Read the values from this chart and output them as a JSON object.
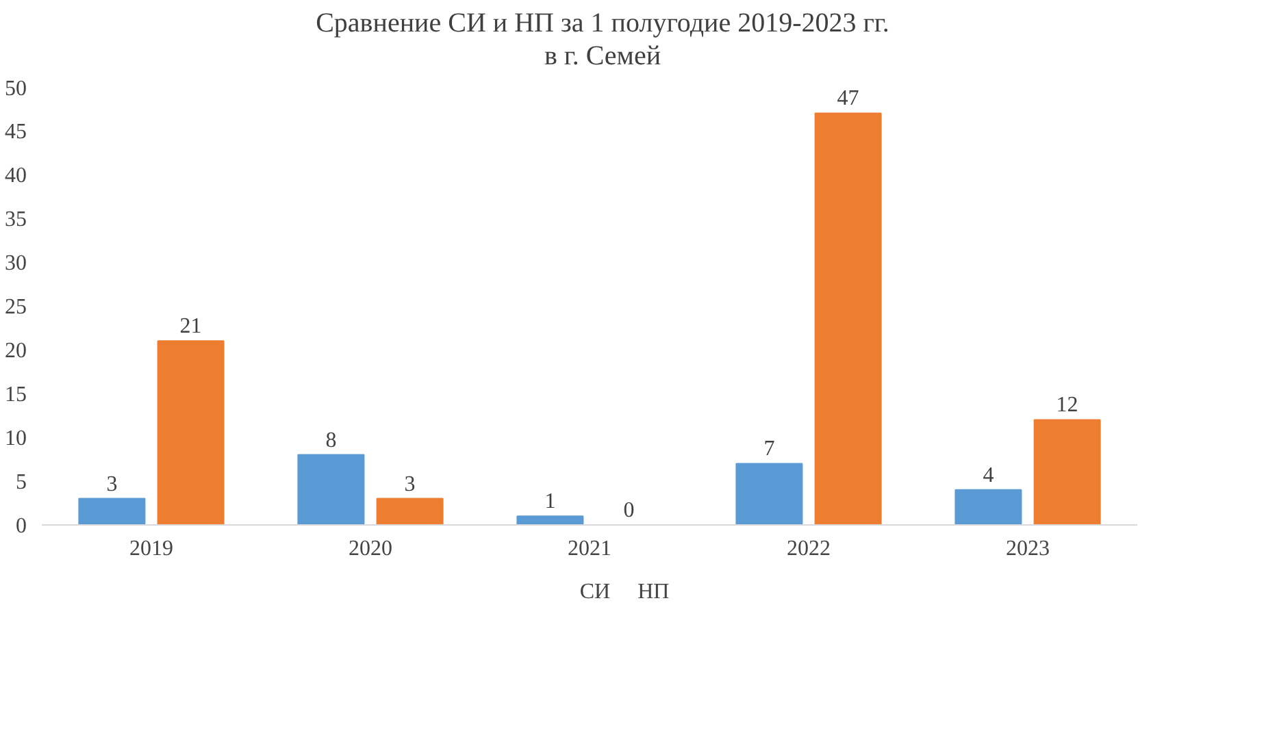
{
  "chart_data": {
    "type": "bar",
    "title": "Сравнение СИ и НП за 1 полугодие 2019-2023 гг.\nв г. Семей",
    "categories": [
      "2019",
      "2020",
      "2021",
      "2022",
      "2023"
    ],
    "series": [
      {
        "name": "СИ",
        "color": "#5b9bd5",
        "values": [
          3,
          8,
          1,
          7,
          4
        ]
      },
      {
        "name": "НП",
        "color": "#ed7d31",
        "values": [
          21,
          3,
          0,
          47,
          12
        ]
      }
    ],
    "ylim": [
      0,
      50
    ],
    "yticks": [
      0,
      5,
      10,
      15,
      20,
      25,
      30,
      35,
      40,
      45,
      50
    ],
    "grid": false,
    "legend": "bottom",
    "data_labels": true
  }
}
